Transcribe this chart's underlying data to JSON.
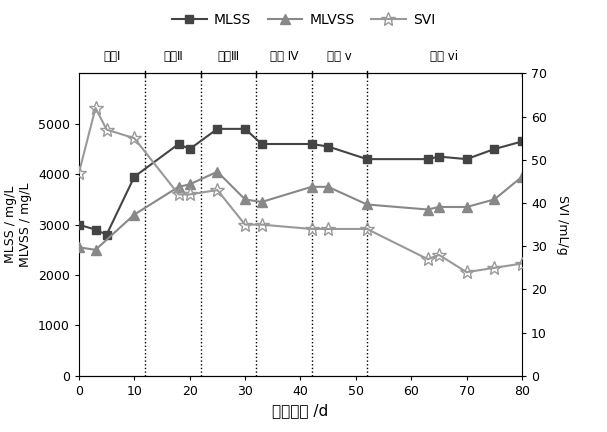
{
  "mlss_x": [
    0,
    3,
    5,
    10,
    18,
    20,
    25,
    30,
    33,
    42,
    45,
    52,
    63,
    65,
    70,
    75,
    80
  ],
  "mlss_y": [
    3000,
    2900,
    2800,
    3950,
    4600,
    4500,
    4900,
    4900,
    4600,
    4600,
    4550,
    4300,
    4300,
    4350,
    4300,
    4500,
    4650
  ],
  "mlvss_x": [
    0,
    3,
    10,
    18,
    20,
    25,
    30,
    33,
    42,
    45,
    52,
    63,
    65,
    70,
    75,
    80
  ],
  "mlvss_y": [
    2550,
    2500,
    3200,
    3750,
    3800,
    4050,
    3500,
    3450,
    3750,
    3750,
    3400,
    3300,
    3350,
    3350,
    3500,
    3950
  ],
  "svi_x": [
    0,
    3,
    5,
    10,
    18,
    20,
    25,
    30,
    33,
    42,
    45,
    52,
    63,
    65,
    70,
    75,
    80
  ],
  "svi_y": [
    47,
    62,
    57,
    55,
    42,
    42,
    43,
    35,
    35,
    34,
    34,
    34,
    27,
    28,
    24,
    25,
    26
  ],
  "phase_lines": [
    12,
    22,
    32,
    42,
    52
  ],
  "phase_labels": [
    {
      "text": "阶段Ⅰ",
      "x": 6
    },
    {
      "text": "阶段Ⅱ",
      "x": 17
    },
    {
      "text": "阶段Ⅲ",
      "x": 27
    },
    {
      "text": "阶段 Ⅳ",
      "x": 37
    },
    {
      "text": "阶段 v",
      "x": 47
    },
    {
      "text": "阶段 vi",
      "x": 66
    }
  ],
  "xlabel": "运行时间 /d",
  "ylabel_left": "MLSS / mg/L\nMLVSS / mg/L",
  "ylabel_right": "SVI /mL/g",
  "xlim": [
    0,
    80
  ],
  "ylim_left": [
    0,
    6000
  ],
  "ylim_right": [
    0,
    70
  ],
  "yticks_left": [
    0,
    1000,
    2000,
    3000,
    4000,
    5000
  ],
  "yticks_right": [
    0,
    10,
    20,
    30,
    40,
    50,
    60,
    70
  ],
  "xticks": [
    0,
    10,
    20,
    30,
    40,
    50,
    60,
    70,
    80
  ],
  "mlss_color": "#444444",
  "mlvss_color": "#888888",
  "svi_color": "#999999",
  "background": "#ffffff",
  "legend_labels": [
    "MLSS",
    "MLVSS",
    "SVI"
  ],
  "figsize": [
    6.07,
    4.32
  ],
  "dpi": 100
}
